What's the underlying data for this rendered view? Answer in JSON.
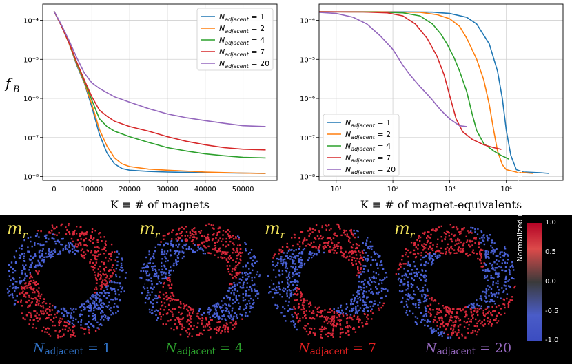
{
  "chart_data": [
    {
      "type": "line",
      "ylabel": "f_B",
      "xlabel": "K ≡  # of magnets",
      "xscale": "linear",
      "yscale": "log",
      "xlim": [
        -3000,
        59000
      ],
      "ylim": [
        8e-09,
        0.00026
      ],
      "x_ticks": [
        0,
        10000,
        20000,
        30000,
        40000,
        50000
      ],
      "x_tick_labels": [
        "0",
        "10000",
        "20000",
        "30000",
        "40000",
        "50000"
      ],
      "y_ticks": [
        1e-08,
        1e-07,
        1e-06,
        1e-05,
        0.0001
      ],
      "y_tick_labels": [
        "10⁻⁸",
        "10⁻⁷",
        "10⁻⁶",
        "10⁻⁵",
        "10⁻⁴"
      ],
      "grid": true,
      "legend_position": "top-right",
      "series": [
        {
          "name": "N_adjacent = 1",
          "legend_n": "1",
          "color": "#1f77b4",
          "points": [
            [
              0,
              0.00017
            ],
            [
              2000,
              7e-05
            ],
            [
              4000,
              2.5e-05
            ],
            [
              6000,
              7e-06
            ],
            [
              8000,
              2.5e-06
            ],
            [
              10000,
              6e-07
            ],
            [
              12000,
              1.2e-07
            ],
            [
              14000,
              4e-08
            ],
            [
              16000,
              2.1e-08
            ],
            [
              18000,
              1.6e-08
            ],
            [
              20000,
              1.45e-08
            ],
            [
              25000,
              1.35e-08
            ],
            [
              30000,
              1.3e-08
            ],
            [
              40000,
              1.25e-08
            ],
            [
              50000,
              1.22e-08
            ],
            [
              56000,
              1.2e-08
            ]
          ]
        },
        {
          "name": "N_adjacent = 2",
          "legend_n": "2",
          "color": "#ff7f0e",
          "points": [
            [
              0,
              0.00017
            ],
            [
              2000,
              7e-05
            ],
            [
              4000,
              2.5e-05
            ],
            [
              6000,
              7.5e-06
            ],
            [
              8000,
              2.6e-06
            ],
            [
              10000,
              7e-07
            ],
            [
              12000,
              1.6e-07
            ],
            [
              14000,
              6e-08
            ],
            [
              16000,
              3e-08
            ],
            [
              18000,
              2.1e-08
            ],
            [
              20000,
              1.8e-08
            ],
            [
              25000,
              1.55e-08
            ],
            [
              30000,
              1.45e-08
            ],
            [
              40000,
              1.3e-08
            ],
            [
              50000,
              1.22e-08
            ],
            [
              56000,
              1.2e-08
            ]
          ]
        },
        {
          "name": "N_adjacent = 4",
          "legend_n": "4",
          "color": "#2ca02c",
          "points": [
            [
              0,
              0.00017
            ],
            [
              2000,
              7e-05
            ],
            [
              4000,
              2.6e-05
            ],
            [
              6000,
              8e-06
            ],
            [
              8000,
              2.8e-06
            ],
            [
              10000,
              9e-07
            ],
            [
              12000,
              3e-07
            ],
            [
              14000,
              1.9e-07
            ],
            [
              16000,
              1.45e-07
            ],
            [
              20000,
              1.05e-07
            ],
            [
              25000,
              7.5e-08
            ],
            [
              30000,
              5.5e-08
            ],
            [
              35000,
              4.5e-08
            ],
            [
              40000,
              3.8e-08
            ],
            [
              45000,
              3.4e-08
            ],
            [
              50000,
              3.1e-08
            ],
            [
              56000,
              3e-08
            ]
          ]
        },
        {
          "name": "N_adjacent = 7",
          "legend_n": "7",
          "color": "#d62728",
          "points": [
            [
              0,
              0.00017
            ],
            [
              2000,
              7e-05
            ],
            [
              4000,
              2.6e-05
            ],
            [
              6000,
              8.5e-06
            ],
            [
              8000,
              3e-06
            ],
            [
              10000,
              1.1e-06
            ],
            [
              12000,
              5e-07
            ],
            [
              14000,
              3.5e-07
            ],
            [
              16000,
              2.6e-07
            ],
            [
              20000,
              1.9e-07
            ],
            [
              25000,
              1.45e-07
            ],
            [
              30000,
              1.05e-07
            ],
            [
              35000,
              8e-08
            ],
            [
              40000,
              6.5e-08
            ],
            [
              45000,
              5.5e-08
            ],
            [
              50000,
              5e-08
            ],
            [
              56000,
              4.8e-08
            ]
          ]
        },
        {
          "name": "N_adjacent = 20",
          "legend_n": "20",
          "color": "#9467bd",
          "points": [
            [
              0,
              0.00017
            ],
            [
              2000,
              7.5e-05
            ],
            [
              4000,
              3e-05
            ],
            [
              6000,
              1.1e-05
            ],
            [
              8000,
              4.5e-06
            ],
            [
              10000,
              2.5e-06
            ],
            [
              12000,
              1.8e-06
            ],
            [
              14000,
              1.4e-06
            ],
            [
              16000,
              1.1e-06
            ],
            [
              20000,
              8e-07
            ],
            [
              25000,
              5.5e-07
            ],
            [
              30000,
              4e-07
            ],
            [
              35000,
              3.2e-07
            ],
            [
              40000,
              2.7e-07
            ],
            [
              45000,
              2.3e-07
            ],
            [
              50000,
              2e-07
            ],
            [
              56000,
              1.9e-07
            ]
          ]
        }
      ]
    },
    {
      "type": "line",
      "xlabel": "K ≡  # of magnet-equivalents",
      "xscale": "log",
      "yscale": "log",
      "xlim": [
        5,
        100000
      ],
      "ylim": [
        8e-09,
        0.00026
      ],
      "x_ticks": [
        10,
        100,
        1000,
        10000
      ],
      "x_tick_labels": [
        "10¹",
        "10²",
        "10³",
        "10⁴"
      ],
      "y_ticks": [
        1e-08,
        1e-07,
        1e-06,
        1e-05,
        0.0001
      ],
      "y_tick_labels": [
        "10⁻⁸",
        "10⁻⁷",
        "10⁻⁶",
        "10⁻⁵",
        "10⁻⁴"
      ],
      "grid": true,
      "legend_position": "bottom-left",
      "series": [
        {
          "name": "N_adjacent = 1",
          "legend_n": "1",
          "color": "#1f77b4",
          "points": [
            [
              5,
              0.000165
            ],
            [
              100,
              0.000165
            ],
            [
              500,
              0.000162
            ],
            [
              1000,
              0.00015
            ],
            [
              2000,
              0.00012
            ],
            [
              3000,
              8e-05
            ],
            [
              5000,
              2.5e-05
            ],
            [
              7000,
              5e-06
            ],
            [
              8500,
              1e-06
            ],
            [
              10000,
              1.5e-07
            ],
            [
              12000,
              3.5e-08
            ],
            [
              15000,
              1.5e-08
            ],
            [
              20000,
              1.3e-08
            ],
            [
              40000,
              1.25e-08
            ],
            [
              56000,
              1.2e-08
            ]
          ]
        },
        {
          "name": "N_adjacent = 2",
          "legend_n": "2",
          "color": "#ff7f0e",
          "points": [
            [
              5,
              0.000165
            ],
            [
              50,
              0.000165
            ],
            [
              300,
              0.00016
            ],
            [
              600,
              0.00014
            ],
            [
              1000,
              0.00011
            ],
            [
              1500,
              7e-05
            ],
            [
              2000,
              3.5e-05
            ],
            [
              3000,
              1e-05
            ],
            [
              4000,
              3e-06
            ],
            [
              5000,
              7e-07
            ],
            [
              6000,
              1.5e-07
            ],
            [
              7000,
              4.5e-08
            ],
            [
              8500,
              2e-08
            ],
            [
              10000,
              1.5e-08
            ],
            [
              15000,
              1.3e-08
            ],
            [
              30000,
              1.2e-08
            ]
          ]
        },
        {
          "name": "N_adjacent = 4",
          "legend_n": "4",
          "color": "#2ca02c",
          "points": [
            [
              5,
              0.000165
            ],
            [
              50,
              0.000163
            ],
            [
              150,
              0.000155
            ],
            [
              300,
              0.00013
            ],
            [
              500,
              8e-05
            ],
            [
              700,
              4.5e-05
            ],
            [
              900,
              2.5e-05
            ],
            [
              1200,
              1.1e-05
            ],
            [
              1500,
              5e-06
            ],
            [
              2000,
              1.5e-06
            ],
            [
              2500,
              4e-07
            ],
            [
              3000,
              1.5e-07
            ],
            [
              4000,
              7e-08
            ],
            [
              6000,
              4.5e-08
            ],
            [
              8000,
              3.5e-08
            ],
            [
              10000,
              3e-08
            ],
            [
              11000,
              2.8e-08
            ]
          ]
        },
        {
          "name": "N_adjacent = 7",
          "legend_n": "7",
          "color": "#d62728",
          "points": [
            [
              5,
              0.000165
            ],
            [
              30,
              0.000163
            ],
            [
              80,
              0.000155
            ],
            [
              150,
              0.00013
            ],
            [
              250,
              8e-05
            ],
            [
              400,
              3.5e-05
            ],
            [
              600,
              1.2e-05
            ],
            [
              800,
              4e-06
            ],
            [
              1000,
              1.2e-06
            ],
            [
              1300,
              3e-07
            ],
            [
              1700,
              1.4e-07
            ],
            [
              2500,
              9e-08
            ],
            [
              4000,
              6.5e-08
            ],
            [
              6000,
              5.5e-08
            ],
            [
              8000,
              5e-08
            ],
            [
              8000,
              4.8e-08
            ]
          ]
        },
        {
          "name": "N_adjacent = 20",
          "legend_n": "20",
          "color": "#9467bd",
          "points": [
            [
              5,
              0.00016
            ],
            [
              10,
              0.00015
            ],
            [
              20,
              0.00012
            ],
            [
              35,
              8e-05
            ],
            [
              60,
              4e-05
            ],
            [
              100,
              1.8e-05
            ],
            [
              150,
              7e-06
            ],
            [
              200,
              4e-06
            ],
            [
              300,
              2e-06
            ],
            [
              400,
              1.3e-06
            ],
            [
              500,
              9e-07
            ],
            [
              700,
              5e-07
            ],
            [
              1000,
              3e-07
            ],
            [
              1500,
              2e-07
            ],
            [
              2000,
              1.9e-07
            ]
          ]
        }
      ]
    }
  ],
  "render_panel": {
    "panels": [
      {
        "m_label": "m",
        "m_sub": "r",
        "n_label": "N",
        "n_sub": "adjacent",
        "n_value": " = 1",
        "color": "#1f77b4"
      },
      {
        "m_label": "m",
        "m_sub": "r",
        "n_label": "N",
        "n_sub": "adjacent",
        "n_value": " = 4",
        "color": "#2ca02c"
      },
      {
        "m_label": "m",
        "m_sub": "r",
        "n_label": "N",
        "n_sub": "adjacent",
        "n_value": " = 7",
        "color": "#d62728"
      },
      {
        "m_label": "m",
        "m_sub": "r",
        "n_label": "N",
        "n_sub": "adjacent",
        "n_value": " = 20",
        "color": "#9467bd"
      }
    ],
    "colorbar": {
      "title": "Normalized m magnitudes",
      "ticks": [
        "1.0",
        "0.5",
        "0.0",
        "-0.5",
        "-1.0"
      ]
    }
  }
}
